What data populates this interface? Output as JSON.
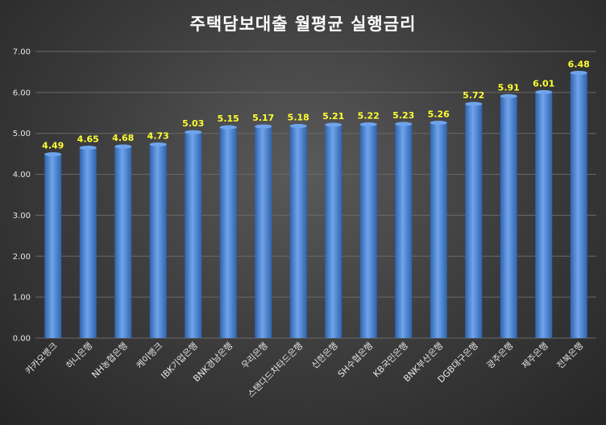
{
  "chart_data": {
    "type": "bar",
    "title": "주택담보대출 월평균 실행금리",
    "xlabel": "",
    "ylabel": "",
    "categories": [
      "카카오뱅크",
      "하나은행",
      "NH농협은행",
      "케이뱅크",
      "IBK기업은행",
      "BNK경남은행",
      "우리은행",
      "스탠다드차타드은행",
      "신한은행",
      "SH수협은행",
      "KB국민은행",
      "BNK부산은행",
      "DGB대구은행",
      "광주은행",
      "제주은행",
      "전북은행"
    ],
    "values": [
      4.49,
      4.65,
      4.68,
      4.73,
      5.03,
      5.15,
      5.17,
      5.18,
      5.21,
      5.22,
      5.23,
      5.26,
      5.72,
      5.91,
      6.01,
      6.48
    ],
    "ylim": [
      0,
      7
    ],
    "yticks": [
      "0.00",
      "1.00",
      "2.00",
      "3.00",
      "4.00",
      "5.00",
      "6.00",
      "7.00"
    ],
    "grid": true,
    "legend": "none",
    "colors": {
      "bar": "#4a86d9",
      "bar_light": "#6fa4ec",
      "bar_dark": "#2f63ad",
      "value_label": "#ffff33",
      "gridline": "#6a6a6a",
      "text": "#e6e6e6"
    }
  }
}
